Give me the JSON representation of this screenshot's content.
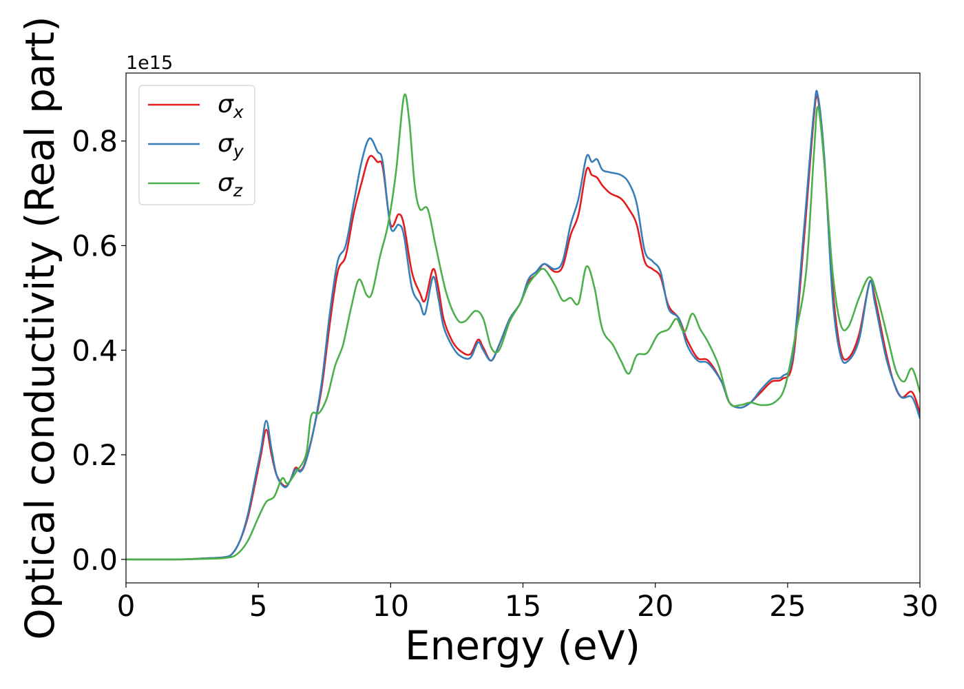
{
  "chart_data": {
    "type": "line",
    "title": "",
    "xlabel": "Energy (eV)",
    "ylabel": "Optical conductivity (Real part)",
    "y_offset_label": "1e15",
    "xlim": [
      0,
      30
    ],
    "ylim": [
      -0.045,
      0.93
    ],
    "x_ticks": [
      0,
      5,
      10,
      15,
      20,
      25,
      30
    ],
    "x_tick_labels": [
      "0",
      "5",
      "10",
      "15",
      "20",
      "25",
      "30"
    ],
    "y_ticks": [
      0.0,
      0.2,
      0.4,
      0.6,
      0.8
    ],
    "y_tick_labels": [
      "0.0",
      "0.2",
      "0.4",
      "0.6",
      "0.8"
    ],
    "grid": false,
    "legend_position": "top-left",
    "series": [
      {
        "name": "σ",
        "subscript": "x",
        "color": "#e41a1c",
        "points": [
          [
            0,
            0
          ],
          [
            2,
            0
          ],
          [
            3,
            0.002
          ],
          [
            3.7,
            0.004
          ],
          [
            4,
            0.01
          ],
          [
            4.3,
            0.035
          ],
          [
            4.6,
            0.08
          ],
          [
            4.9,
            0.15
          ],
          [
            5.1,
            0.2
          ],
          [
            5.3,
            0.248
          ],
          [
            5.5,
            0.2
          ],
          [
            5.7,
            0.16
          ],
          [
            6.0,
            0.14
          ],
          [
            6.2,
            0.15
          ],
          [
            6.4,
            0.175
          ],
          [
            6.6,
            0.17
          ],
          [
            6.8,
            0.19
          ],
          [
            7.1,
            0.25
          ],
          [
            7.4,
            0.33
          ],
          [
            7.7,
            0.45
          ],
          [
            8.0,
            0.55
          ],
          [
            8.3,
            0.58
          ],
          [
            8.6,
            0.66
          ],
          [
            8.9,
            0.72
          ],
          [
            9.2,
            0.77
          ],
          [
            9.5,
            0.76
          ],
          [
            9.7,
            0.75
          ],
          [
            10.0,
            0.64
          ],
          [
            10.3,
            0.66
          ],
          [
            10.5,
            0.64
          ],
          [
            10.8,
            0.55
          ],
          [
            11.1,
            0.51
          ],
          [
            11.3,
            0.495
          ],
          [
            11.6,
            0.555
          ],
          [
            11.8,
            0.52
          ],
          [
            12.0,
            0.46
          ],
          [
            12.3,
            0.42
          ],
          [
            12.6,
            0.4
          ],
          [
            13.0,
            0.392
          ],
          [
            13.3,
            0.42
          ],
          [
            13.5,
            0.405
          ],
          [
            13.8,
            0.38
          ],
          [
            14.1,
            0.41
          ],
          [
            14.5,
            0.46
          ],
          [
            14.9,
            0.49
          ],
          [
            15.2,
            0.53
          ],
          [
            15.5,
            0.545
          ],
          [
            15.8,
            0.565
          ],
          [
            16.2,
            0.55
          ],
          [
            16.5,
            0.56
          ],
          [
            16.8,
            0.62
          ],
          [
            17.1,
            0.66
          ],
          [
            17.4,
            0.745
          ],
          [
            17.6,
            0.735
          ],
          [
            17.8,
            0.73
          ],
          [
            18.0,
            0.715
          ],
          [
            18.3,
            0.7
          ],
          [
            18.7,
            0.69
          ],
          [
            19.0,
            0.67
          ],
          [
            19.3,
            0.64
          ],
          [
            19.6,
            0.57
          ],
          [
            19.9,
            0.555
          ],
          [
            20.2,
            0.54
          ],
          [
            20.5,
            0.485
          ],
          [
            20.9,
            0.46
          ],
          [
            21.2,
            0.42
          ],
          [
            21.6,
            0.385
          ],
          [
            22.0,
            0.38
          ],
          [
            22.5,
            0.34
          ],
          [
            22.8,
            0.3
          ],
          [
            23.2,
            0.29
          ],
          [
            23.6,
            0.3
          ],
          [
            24.0,
            0.32
          ],
          [
            24.4,
            0.34
          ],
          [
            24.8,
            0.345
          ],
          [
            25.2,
            0.38
          ],
          [
            25.6,
            0.6
          ],
          [
            26.0,
            0.85
          ],
          [
            26.15,
            0.88
          ],
          [
            26.4,
            0.75
          ],
          [
            26.7,
            0.52
          ],
          [
            27.0,
            0.4
          ],
          [
            27.3,
            0.385
          ],
          [
            27.7,
            0.43
          ],
          [
            28.1,
            0.53
          ],
          [
            28.3,
            0.5
          ],
          [
            28.7,
            0.4
          ],
          [
            29.0,
            0.34
          ],
          [
            29.3,
            0.31
          ],
          [
            29.7,
            0.32
          ],
          [
            30.0,
            0.28
          ]
        ]
      },
      {
        "name": "σ",
        "subscript": "y",
        "color": "#377eb8",
        "points": [
          [
            0,
            0
          ],
          [
            2,
            0
          ],
          [
            3,
            0.002
          ],
          [
            3.7,
            0.004
          ],
          [
            4,
            0.01
          ],
          [
            4.3,
            0.035
          ],
          [
            4.6,
            0.085
          ],
          [
            4.9,
            0.16
          ],
          [
            5.1,
            0.21
          ],
          [
            5.3,
            0.265
          ],
          [
            5.5,
            0.21
          ],
          [
            5.7,
            0.16
          ],
          [
            6.0,
            0.138
          ],
          [
            6.2,
            0.15
          ],
          [
            6.4,
            0.172
          ],
          [
            6.6,
            0.168
          ],
          [
            6.8,
            0.188
          ],
          [
            7.1,
            0.25
          ],
          [
            7.4,
            0.34
          ],
          [
            7.7,
            0.47
          ],
          [
            8.0,
            0.57
          ],
          [
            8.3,
            0.6
          ],
          [
            8.6,
            0.68
          ],
          [
            8.9,
            0.76
          ],
          [
            9.2,
            0.805
          ],
          [
            9.5,
            0.78
          ],
          [
            9.7,
            0.76
          ],
          [
            10.0,
            0.635
          ],
          [
            10.3,
            0.64
          ],
          [
            10.5,
            0.62
          ],
          [
            10.8,
            0.52
          ],
          [
            11.1,
            0.49
          ],
          [
            11.3,
            0.47
          ],
          [
            11.6,
            0.54
          ],
          [
            11.8,
            0.5
          ],
          [
            12.0,
            0.445
          ],
          [
            12.3,
            0.41
          ],
          [
            12.6,
            0.39
          ],
          [
            13.0,
            0.385
          ],
          [
            13.3,
            0.415
          ],
          [
            13.5,
            0.4
          ],
          [
            13.8,
            0.38
          ],
          [
            14.1,
            0.41
          ],
          [
            14.5,
            0.46
          ],
          [
            14.9,
            0.49
          ],
          [
            15.2,
            0.535
          ],
          [
            15.5,
            0.55
          ],
          [
            15.8,
            0.565
          ],
          [
            16.2,
            0.555
          ],
          [
            16.5,
            0.57
          ],
          [
            16.8,
            0.64
          ],
          [
            17.1,
            0.69
          ],
          [
            17.4,
            0.77
          ],
          [
            17.6,
            0.76
          ],
          [
            17.8,
            0.765
          ],
          [
            18.0,
            0.745
          ],
          [
            18.3,
            0.74
          ],
          [
            18.7,
            0.735
          ],
          [
            19.0,
            0.72
          ],
          [
            19.3,
            0.68
          ],
          [
            19.6,
            0.59
          ],
          [
            19.9,
            0.57
          ],
          [
            20.2,
            0.55
          ],
          [
            20.5,
            0.48
          ],
          [
            20.9,
            0.46
          ],
          [
            21.2,
            0.41
          ],
          [
            21.6,
            0.38
          ],
          [
            22.0,
            0.375
          ],
          [
            22.5,
            0.34
          ],
          [
            22.8,
            0.3
          ],
          [
            23.2,
            0.29
          ],
          [
            23.6,
            0.3
          ],
          [
            24.0,
            0.325
          ],
          [
            24.4,
            0.345
          ],
          [
            24.8,
            0.35
          ],
          [
            25.2,
            0.39
          ],
          [
            25.6,
            0.62
          ],
          [
            26.0,
            0.86
          ],
          [
            26.15,
            0.885
          ],
          [
            26.4,
            0.76
          ],
          [
            26.7,
            0.5
          ],
          [
            27.0,
            0.39
          ],
          [
            27.3,
            0.38
          ],
          [
            27.7,
            0.42
          ],
          [
            28.1,
            0.53
          ],
          [
            28.3,
            0.49
          ],
          [
            28.7,
            0.39
          ],
          [
            29.0,
            0.34
          ],
          [
            29.3,
            0.31
          ],
          [
            29.7,
            0.31
          ],
          [
            30.0,
            0.27
          ]
        ]
      },
      {
        "name": "σ",
        "subscript": "z",
        "color": "#4daf4a",
        "points": [
          [
            0,
            0
          ],
          [
            2,
            0
          ],
          [
            3,
            0.001
          ],
          [
            3.8,
            0.003
          ],
          [
            4.2,
            0.01
          ],
          [
            4.6,
            0.035
          ],
          [
            5.0,
            0.08
          ],
          [
            5.3,
            0.11
          ],
          [
            5.6,
            0.12
          ],
          [
            5.9,
            0.155
          ],
          [
            6.1,
            0.145
          ],
          [
            6.4,
            0.165
          ],
          [
            6.8,
            0.2
          ],
          [
            7.0,
            0.275
          ],
          [
            7.3,
            0.28
          ],
          [
            7.6,
            0.31
          ],
          [
            7.9,
            0.37
          ],
          [
            8.2,
            0.41
          ],
          [
            8.5,
            0.48
          ],
          [
            8.8,
            0.535
          ],
          [
            9.1,
            0.505
          ],
          [
            9.3,
            0.51
          ],
          [
            9.6,
            0.58
          ],
          [
            9.9,
            0.64
          ],
          [
            10.2,
            0.74
          ],
          [
            10.5,
            0.885
          ],
          [
            10.7,
            0.84
          ],
          [
            10.9,
            0.72
          ],
          [
            11.1,
            0.67
          ],
          [
            11.4,
            0.67
          ],
          [
            11.7,
            0.6
          ],
          [
            12.1,
            0.51
          ],
          [
            12.5,
            0.46
          ],
          [
            12.8,
            0.455
          ],
          [
            13.2,
            0.475
          ],
          [
            13.5,
            0.46
          ],
          [
            13.8,
            0.405
          ],
          [
            14.1,
            0.4
          ],
          [
            14.5,
            0.455
          ],
          [
            14.9,
            0.49
          ],
          [
            15.2,
            0.525
          ],
          [
            15.5,
            0.545
          ],
          [
            15.8,
            0.555
          ],
          [
            16.2,
            0.525
          ],
          [
            16.5,
            0.495
          ],
          [
            16.8,
            0.5
          ],
          [
            17.1,
            0.49
          ],
          [
            17.4,
            0.56
          ],
          [
            17.7,
            0.52
          ],
          [
            18.0,
            0.44
          ],
          [
            18.4,
            0.41
          ],
          [
            18.7,
            0.38
          ],
          [
            19.0,
            0.355
          ],
          [
            19.3,
            0.39
          ],
          [
            19.7,
            0.395
          ],
          [
            20.1,
            0.43
          ],
          [
            20.5,
            0.44
          ],
          [
            20.8,
            0.46
          ],
          [
            21.1,
            0.435
          ],
          [
            21.4,
            0.47
          ],
          [
            21.7,
            0.44
          ],
          [
            22.0,
            0.415
          ],
          [
            22.4,
            0.37
          ],
          [
            22.8,
            0.3
          ],
          [
            23.2,
            0.295
          ],
          [
            23.6,
            0.3
          ],
          [
            24.0,
            0.295
          ],
          [
            24.5,
            0.3
          ],
          [
            24.9,
            0.33
          ],
          [
            25.3,
            0.43
          ],
          [
            25.7,
            0.55
          ],
          [
            26.0,
            0.78
          ],
          [
            26.15,
            0.865
          ],
          [
            26.4,
            0.75
          ],
          [
            26.7,
            0.55
          ],
          [
            27.0,
            0.45
          ],
          [
            27.3,
            0.445
          ],
          [
            27.7,
            0.5
          ],
          [
            28.1,
            0.54
          ],
          [
            28.4,
            0.5
          ],
          [
            28.8,
            0.42
          ],
          [
            29.1,
            0.36
          ],
          [
            29.4,
            0.34
          ],
          [
            29.7,
            0.365
          ],
          [
            30.0,
            0.32
          ]
        ]
      }
    ]
  }
}
